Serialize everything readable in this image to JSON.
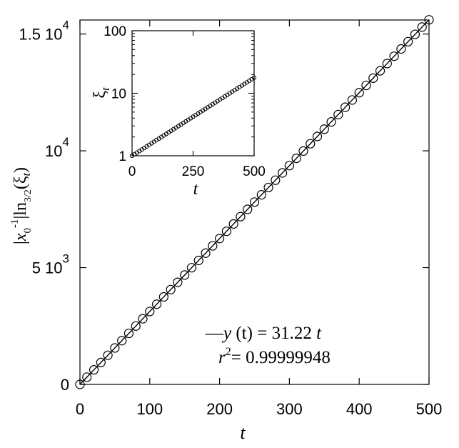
{
  "chart_data": [
    {
      "type": "line",
      "role": "main",
      "xlabel": "t",
      "ylabel": "|x0^-1| ln_{3/2}(ξt)",
      "xlim": [
        0,
        500
      ],
      "ylim": [
        0,
        15600
      ],
      "x_ticks": [
        {
          "value": 0,
          "label": "0"
        },
        {
          "value": 100,
          "label": "100"
        },
        {
          "value": 200,
          "label": "200"
        },
        {
          "value": 300,
          "label": "300"
        },
        {
          "value": 400,
          "label": "400"
        },
        {
          "value": 500,
          "label": "500"
        }
      ],
      "y_ticks": [
        {
          "value": 0,
          "mantissa": "0",
          "exponent": ""
        },
        {
          "value": 5000,
          "mantissa": "5 10",
          "exponent": "3"
        },
        {
          "value": 10000,
          "mantissa": "10",
          "exponent": "4"
        },
        {
          "value": 15000,
          "mantissa": "1.5 10",
          "exponent": "4"
        }
      ],
      "grid": false,
      "series": [
        {
          "marker": "open-circle",
          "x": [
            0,
            10,
            20,
            30,
            40,
            50,
            60,
            70,
            80,
            90,
            100,
            110,
            120,
            130,
            140,
            150,
            160,
            170,
            180,
            190,
            200,
            210,
            220,
            230,
            240,
            250,
            260,
            270,
            280,
            290,
            300,
            310,
            320,
            330,
            340,
            350,
            360,
            370,
            380,
            390,
            400,
            410,
            420,
            430,
            440,
            450,
            460,
            470,
            480,
            490,
            500
          ],
          "y": [
            0,
            312,
            624,
            937,
            1249,
            1561,
            1873,
            2185,
            2498,
            2810,
            3122,
            3434,
            3746,
            4059,
            4371,
            4683,
            4995,
            5307,
            5620,
            5932,
            6244,
            6556,
            6868,
            7181,
            7493,
            7805,
            8117,
            8429,
            8742,
            9054,
            9366,
            9678,
            9990,
            10303,
            10615,
            10927,
            11239,
            11551,
            11864,
            12176,
            12488,
            12800,
            13112,
            13425,
            13737,
            14049,
            14361,
            14673,
            14986,
            15298,
            15610
          ]
        },
        {
          "marker": "line",
          "x": [
            0,
            500
          ],
          "y": [
            0,
            15610
          ]
        }
      ],
      "annotation": {
        "fit_prefix": "—",
        "fit_y": "y",
        "fit_arg": " (t)",
        "fit_eq": " = 31.22 ",
        "fit_t": "t",
        "r_label": "r",
        "r_exp": "2",
        "r_value": "= 0.99999948"
      }
    },
    {
      "type": "scatter",
      "role": "inset",
      "xlabel": "t",
      "ylabel": "ξt",
      "xlim": [
        0,
        500
      ],
      "ylim": [
        1,
        100
      ],
      "yscale": "log",
      "x_ticks": [
        {
          "value": 0,
          "label": "0"
        },
        {
          "value": 250,
          "label": "250"
        },
        {
          "value": 500,
          "label": "500"
        }
      ],
      "y_ticks": [
        {
          "value": 1,
          "label": "1"
        },
        {
          "value": 10,
          "label": "10"
        },
        {
          "value": 100,
          "label": "100"
        }
      ],
      "grid": false,
      "series": [
        {
          "marker": "open-circle",
          "growth_rate": 0.00575,
          "x": [
            0,
            10,
            20,
            30,
            40,
            50,
            60,
            70,
            80,
            90,
            100,
            110,
            120,
            130,
            140,
            150,
            160,
            170,
            180,
            190,
            200,
            210,
            220,
            230,
            240,
            250,
            260,
            270,
            280,
            290,
            300,
            310,
            320,
            330,
            340,
            350,
            360,
            370,
            380,
            390,
            400,
            410,
            420,
            430,
            440,
            450,
            460,
            470,
            480,
            490,
            500
          ]
        }
      ]
    }
  ]
}
